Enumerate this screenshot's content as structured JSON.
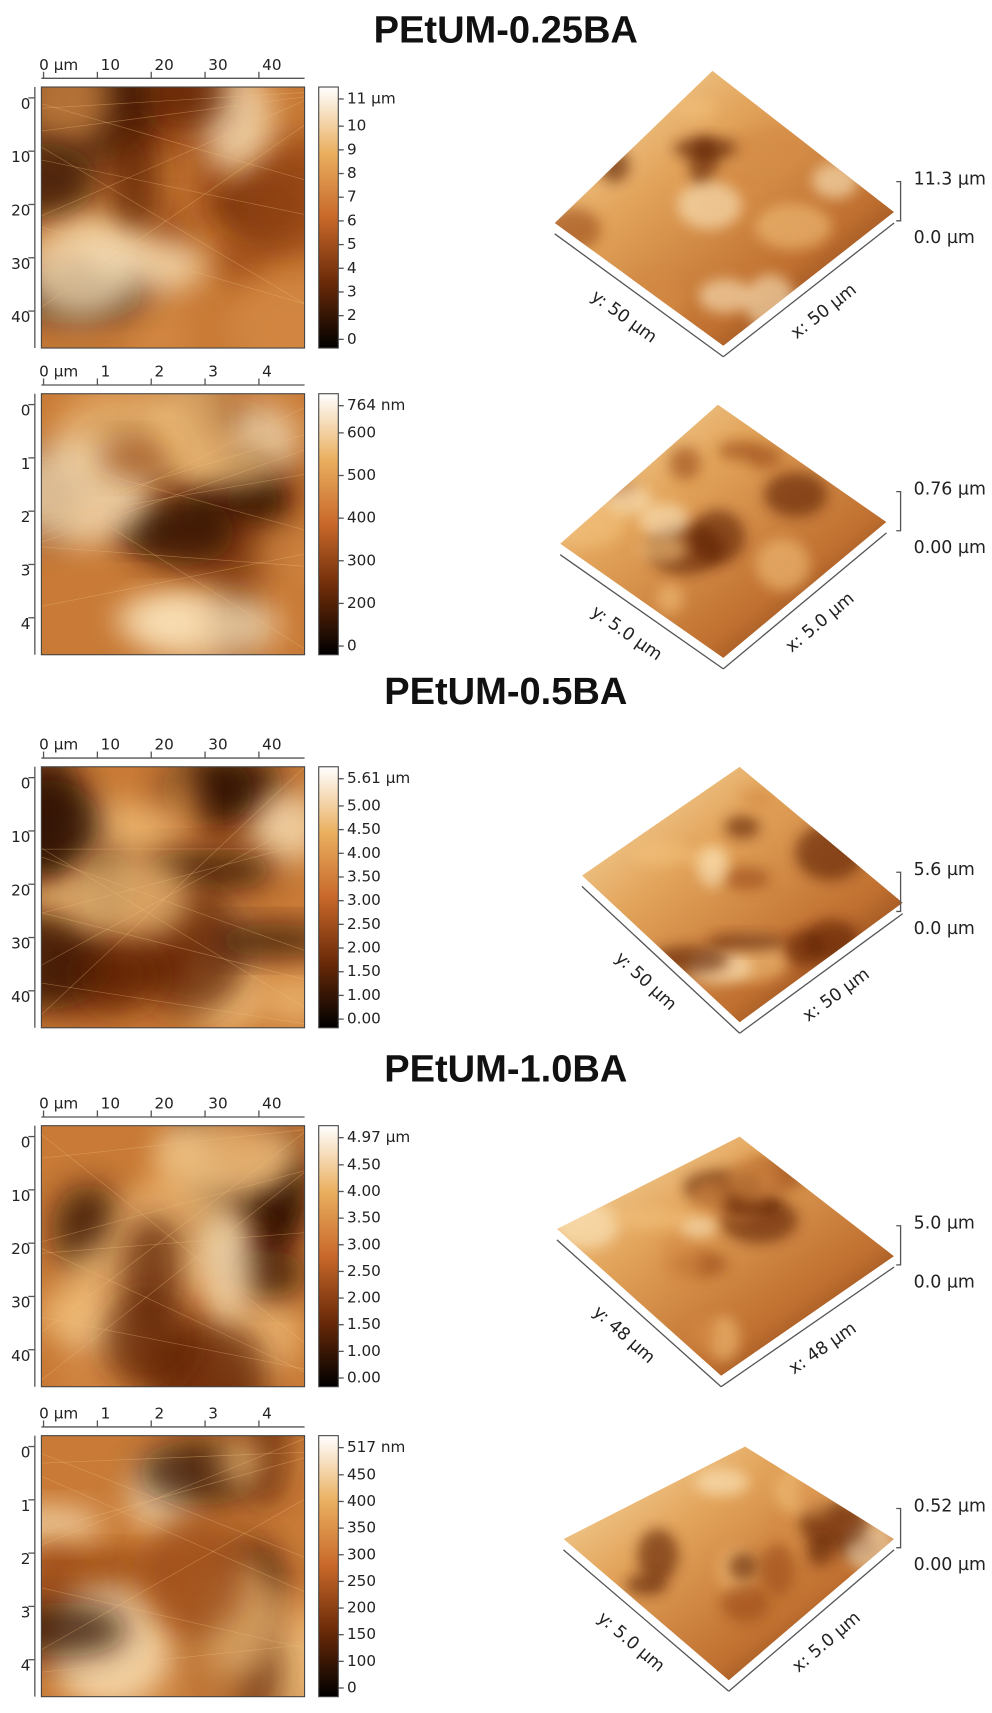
{
  "sections": [
    {
      "title": "PEtUM-0.25BA",
      "panels": [
        {
          "x_ticks": [
            "0 µm",
            "10",
            "20",
            "30",
            "40"
          ],
          "y_ticks": [
            "0",
            "10",
            "20",
            "30",
            "40"
          ],
          "colorbar_ticks": [
            "11 µm",
            "10",
            "9",
            "8",
            "7",
            "6",
            "5",
            "4",
            "3",
            "2",
            "0"
          ],
          "z_labels": [
            "11.3 µm",
            "0.0 µm"
          ],
          "x_axis_label": "x: 50 µm",
          "y_axis_label": "y: 50 µm"
        },
        {
          "x_ticks": [
            "0 µm",
            "1",
            "2",
            "3",
            "4"
          ],
          "y_ticks": [
            "0",
            "1",
            "2",
            "3",
            "4"
          ],
          "colorbar_ticks": [
            "764 nm",
            "600",
            "500",
            "400",
            "300",
            "200",
            "0"
          ],
          "z_labels": [
            "0.76 µm",
            "0.00 µm"
          ],
          "x_axis_label": "x: 5.0 µm",
          "y_axis_label": "y: 5.0 µm"
        }
      ]
    },
    {
      "title": "PEtUM-0.5BA",
      "panels": [
        {
          "x_ticks": [
            "0 µm",
            "10",
            "20",
            "30",
            "40"
          ],
          "y_ticks": [
            "0",
            "10",
            "20",
            "30",
            "40"
          ],
          "colorbar_ticks": [
            "5.61 µm",
            "5.00",
            "4.50",
            "4.00",
            "3.50",
            "3.00",
            "2.50",
            "2.00",
            "1.50",
            "1.00",
            "0.00"
          ],
          "z_labels": [
            "5.6 µm",
            "0.0 µm"
          ],
          "x_axis_label": "x: 50 µm",
          "y_axis_label": "y: 50 µm"
        }
      ]
    },
    {
      "title": "PEtUM-1.0BA",
      "panels": [
        {
          "x_ticks": [
            "0 µm",
            "10",
            "20",
            "30",
            "40"
          ],
          "y_ticks": [
            "0",
            "10",
            "20",
            "30",
            "40"
          ],
          "colorbar_ticks": [
            "4.97 µm",
            "4.50",
            "4.00",
            "3.50",
            "3.00",
            "2.50",
            "2.00",
            "1.50",
            "1.00",
            "0.00"
          ],
          "z_labels": [
            "5.0 µm",
            "0.0 µm"
          ],
          "x_axis_label": "x: 48 µm",
          "y_axis_label": "y: 48 µm"
        },
        {
          "x_ticks": [
            "0 µm",
            "1",
            "2",
            "3",
            "4"
          ],
          "y_ticks": [
            "0",
            "1",
            "2",
            "3",
            "4"
          ],
          "colorbar_ticks": [
            "517 nm",
            "450",
            "400",
            "350",
            "300",
            "250",
            "200",
            "150",
            "100",
            "0"
          ],
          "z_labels": [
            "0.52 µm",
            "0.00 µm"
          ],
          "x_axis_label": "x: 5.0 µm",
          "y_axis_label": "y: 5.0 µm"
        }
      ]
    }
  ]
}
